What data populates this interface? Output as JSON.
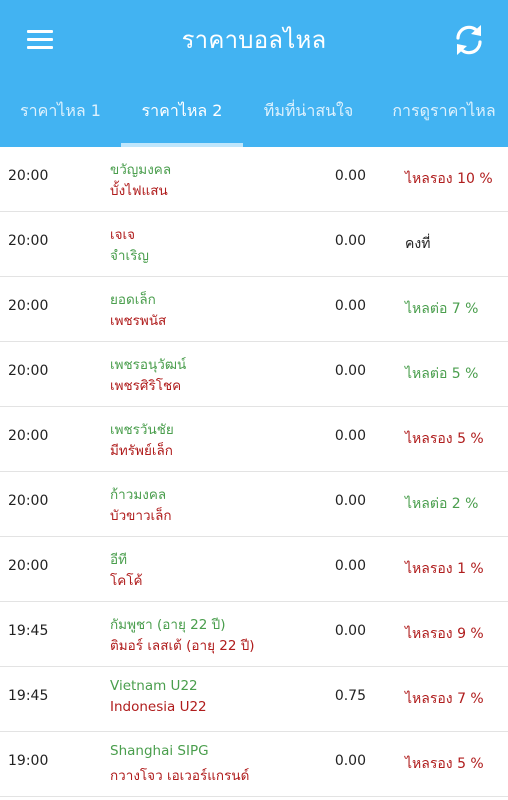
{
  "appbar": {
    "title": "ราคาบอลไหล",
    "menu_icon": "menu-icon",
    "refresh_icon": "refresh-icon",
    "background": "#42b3f2"
  },
  "tabs": [
    {
      "label": "ราคาไหล 1",
      "active": false
    },
    {
      "label": "ราคาไหล 2",
      "active": true
    },
    {
      "label": "ทีมที่น่าสนใจ",
      "active": false
    },
    {
      "label": "การดูราคาไหล",
      "active": false
    }
  ],
  "colors": {
    "green": "#4a9e4d",
    "red": "#b01d1d"
  },
  "matches": [
    {
      "time": "20:00",
      "team1": "ขวัญมงคล",
      "team1_color": "green",
      "team2": "บั้งไฟแสน",
      "team2_color": "red",
      "price": "0.00",
      "status": "ไหลรอง 10 %",
      "status_color": "red"
    },
    {
      "time": "20:00",
      "team1": "เจเจ",
      "team1_color": "red",
      "team2": "จำเริญ",
      "team2_color": "green",
      "price": "0.00",
      "status": "คงที่",
      "status_color": "black"
    },
    {
      "time": "20:00",
      "team1": "ยอดเล็ก",
      "team1_color": "green",
      "team2": "เพชรพนัส",
      "team2_color": "red",
      "price": "0.00",
      "status": "ไหลต่อ 7 %",
      "status_color": "green"
    },
    {
      "time": "20:00",
      "team1": "เพชรอนุวัฒน์",
      "team1_color": "green",
      "team2": "เพชรศิริโชค",
      "team2_color": "red",
      "price": "0.00",
      "status": "ไหลต่อ 5 %",
      "status_color": "green"
    },
    {
      "time": "20:00",
      "team1": "เพชรวันชัย",
      "team1_color": "green",
      "team2": "มีทรัพย์เล็ก",
      "team2_color": "red",
      "price": "0.00",
      "status": "ไหลรอง 5 %",
      "status_color": "red"
    },
    {
      "time": "20:00",
      "team1": "ก้าวมงคล",
      "team1_color": "green",
      "team2": "บัวขาวเล็ก",
      "team2_color": "red",
      "price": "0.00",
      "status": "ไหลต่อ 2 %",
      "status_color": "green"
    },
    {
      "time": "20:00",
      "team1": "อีที",
      "team1_color": "green",
      "team2": "โคโค้",
      "team2_color": "red",
      "price": "0.00",
      "status": "ไหลรอง 1 %",
      "status_color": "red"
    },
    {
      "time": "19:45",
      "team1": "กัมพูชา (อายุ 22 ปี)",
      "team1_color": "green",
      "team2": "ติมอร์ เลสเต้ (อายุ 22 ปี)",
      "team2_color": "red",
      "price": "0.00",
      "status": "ไหลรอง 9 %",
      "status_color": "red"
    },
    {
      "time": "19:45",
      "team1": "Vietnam U22",
      "team1_color": "green",
      "team2": "Indonesia U22",
      "team2_color": "red",
      "price": "0.75",
      "status": "ไหลรอง 7 %",
      "status_color": "red"
    },
    {
      "time": "19:00",
      "team1": "Shanghai SIPG",
      "team1_color": "green",
      "team2": "กวางโจว เอเวอร์แกรนด์",
      "team2_color": "red",
      "price": "0.00",
      "status": "ไหลรอง 5 %",
      "status_color": "red"
    }
  ]
}
